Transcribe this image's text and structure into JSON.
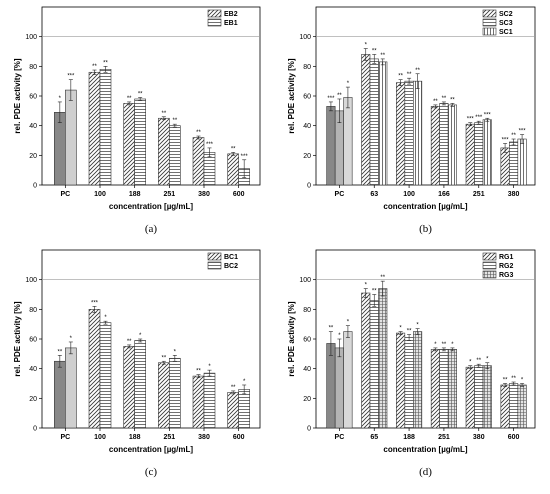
{
  "figure": {
    "panel_labels": [
      "(a)",
      "(b)",
      "(c)",
      "(d)"
    ]
  },
  "chart_data": [
    {
      "type": "bar",
      "panel": "(a)",
      "xlabel": "concentration [µg/mL]",
      "ylabel": "rel. PDE activity [%]",
      "ylim": [
        0,
        120
      ],
      "yticks": [
        0,
        20,
        40,
        60,
        80,
        100
      ],
      "reference_line": 100,
      "pc": {
        "label": "PC",
        "values": [
          49,
          64
        ],
        "errors": [
          7,
          7
        ],
        "sig": [
          "*",
          "***"
        ],
        "colors": [
          "#888888",
          "#cfcfcf"
        ]
      },
      "categories": [
        "100",
        "188",
        "251",
        "380",
        "600"
      ],
      "series": [
        {
          "name": "EB2",
          "pattern": "diag",
          "values": [
            76,
            55,
            45,
            32,
            21
          ],
          "errors": [
            1.5,
            1,
            1,
            1,
            1
          ],
          "sig": [
            "**",
            "**",
            "**",
            "**",
            "**"
          ]
        },
        {
          "name": "EB1",
          "pattern": "horiz",
          "values": [
            78,
            58,
            40,
            22,
            11
          ],
          "errors": [
            2,
            1,
            1,
            3,
            6
          ],
          "sig": [
            "**",
            "**",
            "**",
            "***",
            "***"
          ]
        }
      ],
      "legend": "top-right"
    },
    {
      "type": "bar",
      "panel": "(b)",
      "xlabel": "concentration [µg/mL]",
      "ylabel": "rel. PDE activity [%]",
      "ylim": [
        0,
        120
      ],
      "yticks": [
        0,
        20,
        40,
        60,
        80,
        100
      ],
      "reference_line": 100,
      "pc": {
        "label": "PC",
        "values": [
          53,
          50,
          59
        ],
        "errors": [
          3,
          8,
          7
        ],
        "sig": [
          "***",
          "**",
          "*"
        ],
        "colors": [
          "#888888",
          "#b4b4b4",
          "#d8d8d8"
        ]
      },
      "categories": [
        "63",
        "100",
        "166",
        "251",
        "380"
      ],
      "series": [
        {
          "name": "SC2",
          "pattern": "diag",
          "values": [
            88,
            69,
            53,
            41,
            25
          ],
          "errors": [
            4,
            2,
            1,
            1,
            3
          ],
          "sig": [
            "*",
            "**",
            "**",
            "***",
            "***"
          ]
        },
        {
          "name": "SC3",
          "pattern": "horiz",
          "values": [
            85,
            70,
            55,
            42,
            29
          ],
          "errors": [
            3,
            2,
            1,
            1,
            2
          ],
          "sig": [
            "**",
            "**",
            "**",
            "***",
            "**"
          ]
        },
        {
          "name": "SC1",
          "pattern": "vert",
          "values": [
            83,
            70,
            54,
            44,
            31
          ],
          "errors": [
            2,
            5,
            1,
            1,
            3
          ],
          "sig": [
            "**",
            "**",
            "**",
            "***",
            "***"
          ]
        }
      ],
      "legend": "top-right"
    },
    {
      "type": "bar",
      "panel": "(c)",
      "xlabel": "concentration [µg/mL]",
      "ylabel": "rel. PDE activity [%]",
      "ylim": [
        0,
        120
      ],
      "yticks": [
        0,
        20,
        40,
        60,
        80,
        100
      ],
      "reference_line": 100,
      "pc": {
        "label": "PC",
        "values": [
          45,
          54
        ],
        "errors": [
          4,
          4
        ],
        "sig": [
          "**",
          "*"
        ],
        "colors": [
          "#888888",
          "#cfcfcf"
        ]
      },
      "categories": [
        "100",
        "188",
        "251",
        "380",
        "600"
      ],
      "series": [
        {
          "name": "BC1",
          "pattern": "diag",
          "values": [
            80,
            55,
            44,
            35,
            24
          ],
          "errors": [
            2,
            1,
            1,
            1,
            1
          ],
          "sig": [
            "***",
            "**",
            "**",
            "**",
            "**"
          ]
        },
        {
          "name": "BC2",
          "pattern": "horiz",
          "values": [
            71,
            59,
            47,
            37,
            26
          ],
          "errors": [
            1,
            1,
            2,
            2,
            3
          ],
          "sig": [
            "*",
            "*",
            "*",
            "*",
            "*"
          ]
        }
      ],
      "legend": "top-right"
    },
    {
      "type": "bar",
      "panel": "(d)",
      "xlabel": "concentration [µg/mL]",
      "ylabel": "rel. PDE activity [%]",
      "ylim": [
        0,
        120
      ],
      "yticks": [
        0,
        20,
        40,
        60,
        80,
        100
      ],
      "reference_line": 100,
      "pc": {
        "label": "PC",
        "values": [
          57,
          54,
          65
        ],
        "errors": [
          8,
          6,
          4
        ],
        "sig": [
          "**",
          "*",
          "*"
        ],
        "colors": [
          "#888888",
          "#b4b4b4",
          "#d8d8d8"
        ]
      },
      "categories": [
        "65",
        "188",
        "251",
        "380",
        "600"
      ],
      "series": [
        {
          "name": "RG1",
          "pattern": "diag",
          "values": [
            91,
            64,
            53,
            41,
            29
          ],
          "errors": [
            3,
            1,
            1,
            1,
            1
          ],
          "sig": [
            "*",
            "*",
            "*",
            "*",
            "**"
          ]
        },
        {
          "name": "RG2",
          "pattern": "horiz",
          "values": [
            86,
            61,
            53,
            42,
            30
          ],
          "errors": [
            4,
            2,
            1,
            1,
            1
          ],
          "sig": [
            "**",
            "**",
            "**",
            "**",
            "**"
          ]
        },
        {
          "name": "RG3",
          "pattern": "grid",
          "values": [
            94,
            65,
            53,
            42,
            29
          ],
          "errors": [
            5,
            2,
            1,
            2,
            1
          ],
          "sig": [
            "**",
            "*",
            "*",
            "*",
            "*"
          ]
        }
      ],
      "legend": "top-right"
    }
  ]
}
